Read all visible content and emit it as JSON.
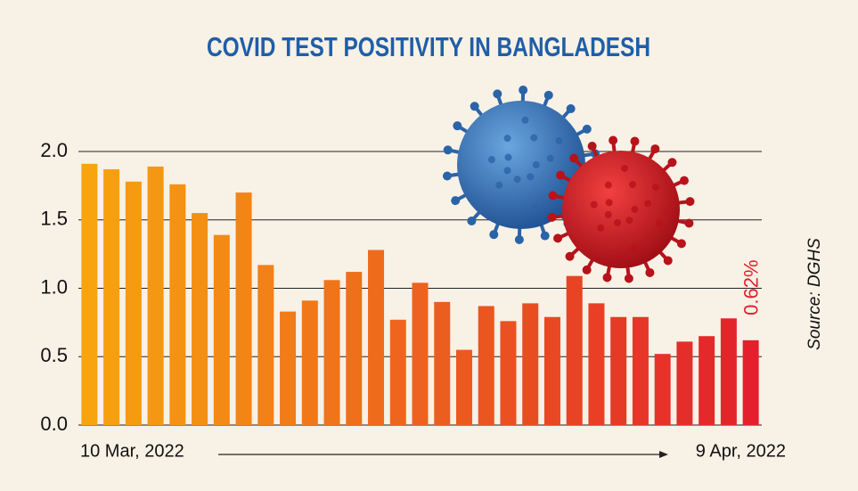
{
  "chart_data": {
    "type": "bar",
    "title": "COVID TEST POSITIVITY IN BANGLADESH",
    "categories": [
      "10 Mar, 2022",
      null,
      null,
      null,
      null,
      null,
      null,
      null,
      null,
      null,
      null,
      null,
      null,
      null,
      null,
      null,
      null,
      null,
      null,
      null,
      null,
      null,
      null,
      null,
      null,
      null,
      null,
      null,
      null,
      null,
      "9 Apr, 2022"
    ],
    "values": [
      1.91,
      1.87,
      1.78,
      1.89,
      1.76,
      1.55,
      1.39,
      1.7,
      1.17,
      0.83,
      0.91,
      1.06,
      1.12,
      1.28,
      0.77,
      1.04,
      0.9,
      0.55,
      0.87,
      0.76,
      0.89,
      0.79,
      1.09,
      0.89,
      0.79,
      0.79,
      0.52,
      0.61,
      0.65,
      0.78,
      0.62
    ],
    "value_labels": [
      null,
      null,
      null,
      null,
      null,
      null,
      null,
      null,
      null,
      null,
      null,
      null,
      null,
      null,
      null,
      null,
      null,
      null,
      null,
      null,
      null,
      null,
      null,
      null,
      null,
      null,
      null,
      null,
      null,
      null,
      "0.62%"
    ],
    "gradient": [
      "#f7a40f",
      "#e3202c"
    ],
    "ylim": [
      0,
      2
    ],
    "yticks": [
      {
        "value": 0,
        "label": "0.0"
      },
      0.5,
      {
        "value": 1,
        "label": "1.0"
      },
      1.5,
      {
        "value": 2,
        "label": "2.0"
      }
    ],
    "grid": true,
    "source": "Source: DGHS"
  }
}
